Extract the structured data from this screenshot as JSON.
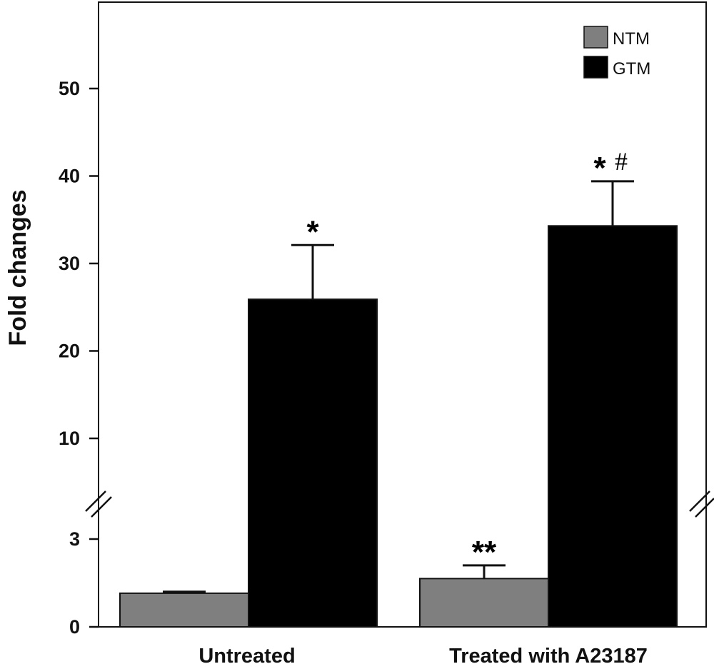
{
  "chart_data": {
    "type": "bar",
    "categories": [
      "Untreated",
      "Treated with A23187"
    ],
    "ylabel": "Fold changes",
    "y_axis_break": true,
    "lower_segment_range": [
      0,
      3
    ],
    "upper_segment_range": [
      10,
      50
    ],
    "yticks": [
      "0",
      "3",
      "10",
      "20",
      "30",
      "40",
      "50"
    ],
    "legend_position": "top-right",
    "series": [
      {
        "name": "NTM",
        "color": "#7f7f7f",
        "values": [
          1.15,
          1.65
        ],
        "errors": [
          0.05,
          0.45
        ]
      },
      {
        "name": "GTM",
        "color": "#000000",
        "values": [
          25.9,
          34.3
        ],
        "errors": [
          6.2,
          5.1
        ]
      }
    ],
    "annotations": [
      {
        "category": 0,
        "series": 1,
        "text": "*"
      },
      {
        "category": 1,
        "series": 0,
        "text": "**"
      },
      {
        "category": 1,
        "series": 1,
        "text": "*",
        "suffix": "#"
      }
    ]
  }
}
